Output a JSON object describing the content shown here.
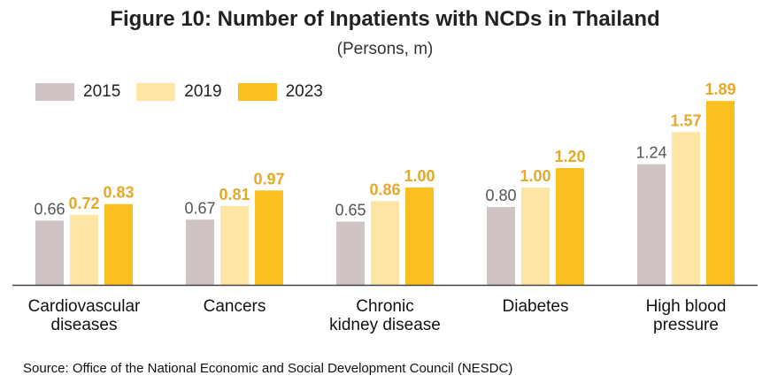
{
  "title": "Figure 10: Number of Inpatients with NCDs in Thailand",
  "subtitle": "(Persons, m)",
  "source": "Source: Office of the National Economic and Social Development Council (NESDC)",
  "colors": {
    "2015": "#cfc3c3",
    "2019": "#fde6a4",
    "2023": "#fcbf22",
    "label_2015": "#555555",
    "label_2019": "#e3a92a",
    "label_2023": "#e3a92a"
  },
  "chart_data": {
    "type": "bar",
    "title": "Figure 10: Number of Inpatients with NCDs in Thailand",
    "ylabel": "(Persons, m)",
    "legend": "top-left",
    "grid": false,
    "ylim": [
      0,
      2.0
    ],
    "categories": [
      [
        "Cardiovascular",
        "diseases"
      ],
      [
        "Cancers"
      ],
      [
        "Chronic",
        "kidney disease"
      ],
      [
        "Diabetes"
      ],
      [
        "High blood",
        "pressure"
      ]
    ],
    "series": [
      {
        "name": "2015",
        "values": [
          0.66,
          0.67,
          0.65,
          0.8,
          1.24
        ],
        "labels": [
          "0.66",
          "0.67",
          "0.65",
          "0.80",
          "1.24"
        ]
      },
      {
        "name": "2019",
        "values": [
          0.72,
          0.81,
          0.86,
          1.0,
          1.57
        ],
        "labels": [
          "0.72",
          "0.81",
          "0.86",
          "1.00",
          "1.57"
        ]
      },
      {
        "name": "2023",
        "values": [
          0.83,
          0.97,
          1.0,
          1.2,
          1.89
        ],
        "labels": [
          "0.83",
          "0.97",
          "1.00",
          "1.20",
          "1.89"
        ]
      }
    ]
  }
}
